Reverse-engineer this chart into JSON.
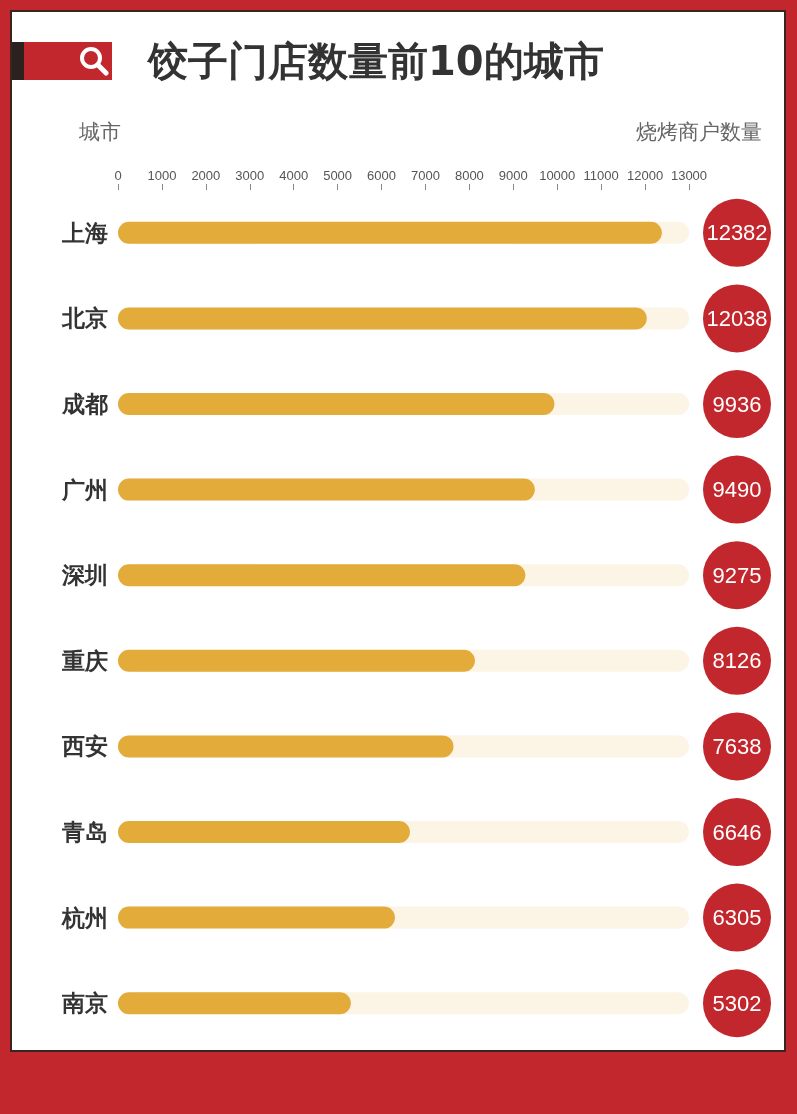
{
  "chart_data": {
    "type": "bar",
    "orientation": "horizontal",
    "title": "饺子门店数量前10的城市",
    "xlabel": "烧烤商户数量",
    "ylabel": "城市",
    "categories": [
      "上海",
      "北京",
      "成都",
      "广州",
      "深圳",
      "重庆",
      "西安",
      "青岛",
      "杭州",
      "南京"
    ],
    "values": [
      12382,
      12038,
      9936,
      9490,
      9275,
      8126,
      7638,
      6646,
      6305,
      5302
    ],
    "color": "#e2ab3a",
    "xlim": [
      0,
      13000
    ],
    "xticks": [
      0,
      1000,
      2000,
      3000,
      4000,
      5000,
      6000,
      7000,
      8000,
      9000,
      10000,
      11000,
      12000,
      13000
    ],
    "data_labels": true
  }
}
